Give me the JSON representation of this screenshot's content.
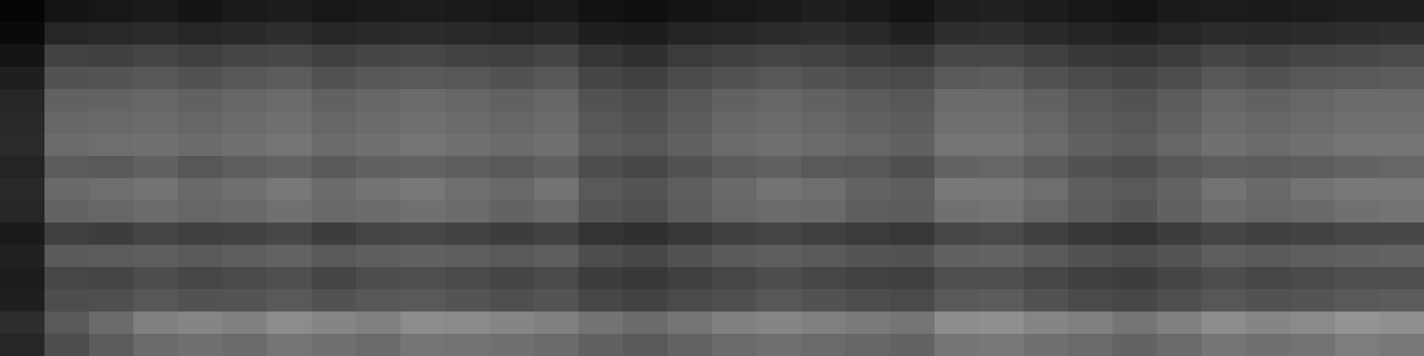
{
  "chart_data": {
    "type": "heatmap",
    "tick_labels": false,
    "zlim": [
      0,
      1
    ],
    "values": [
      [
        0.02,
        0.08,
        0.09,
        0.1,
        0.08,
        0.1,
        0.11,
        0.09,
        0.1,
        0.11,
        0.1,
        0.09,
        0.1,
        0.07,
        0.06,
        0.08,
        0.09,
        0.1,
        0.12,
        0.1,
        0.08,
        0.12,
        0.13,
        0.11,
        0.09,
        0.08,
        0.1,
        0.11,
        0.1,
        0.11,
        0.12,
        0.12
      ],
      [
        0.04,
        0.15,
        0.16,
        0.17,
        0.15,
        0.16,
        0.18,
        0.15,
        0.16,
        0.17,
        0.16,
        0.15,
        0.16,
        0.12,
        0.11,
        0.14,
        0.15,
        0.17,
        0.18,
        0.16,
        0.13,
        0.18,
        0.19,
        0.16,
        0.14,
        0.13,
        0.15,
        0.17,
        0.16,
        0.17,
        0.18,
        0.19
      ],
      [
        0.08,
        0.26,
        0.25,
        0.27,
        0.25,
        0.27,
        0.28,
        0.25,
        0.27,
        0.28,
        0.26,
        0.25,
        0.27,
        0.21,
        0.19,
        0.23,
        0.25,
        0.27,
        0.26,
        0.24,
        0.22,
        0.28,
        0.28,
        0.25,
        0.22,
        0.21,
        0.24,
        0.27,
        0.25,
        0.27,
        0.28,
        0.29
      ],
      [
        0.12,
        0.32,
        0.33,
        0.34,
        0.32,
        0.34,
        0.36,
        0.32,
        0.34,
        0.35,
        0.34,
        0.32,
        0.34,
        0.27,
        0.25,
        0.29,
        0.32,
        0.34,
        0.32,
        0.3,
        0.29,
        0.35,
        0.36,
        0.32,
        0.29,
        0.27,
        0.3,
        0.34,
        0.32,
        0.34,
        0.35,
        0.36
      ],
      [
        0.15,
        0.38,
        0.39,
        0.4,
        0.38,
        0.4,
        0.42,
        0.38,
        0.4,
        0.42,
        0.4,
        0.38,
        0.4,
        0.32,
        0.3,
        0.34,
        0.38,
        0.4,
        0.38,
        0.36,
        0.34,
        0.42,
        0.42,
        0.38,
        0.34,
        0.32,
        0.36,
        0.4,
        0.38,
        0.4,
        0.42,
        0.42
      ],
      [
        0.16,
        0.4,
        0.41,
        0.42,
        0.4,
        0.42,
        0.44,
        0.4,
        0.42,
        0.44,
        0.42,
        0.4,
        0.42,
        0.34,
        0.32,
        0.36,
        0.4,
        0.42,
        0.4,
        0.38,
        0.36,
        0.44,
        0.44,
        0.4,
        0.36,
        0.34,
        0.38,
        0.42,
        0.4,
        0.42,
        0.44,
        0.44
      ],
      [
        0.17,
        0.42,
        0.43,
        0.44,
        0.42,
        0.44,
        0.46,
        0.42,
        0.44,
        0.46,
        0.44,
        0.42,
        0.44,
        0.36,
        0.34,
        0.38,
        0.42,
        0.44,
        0.42,
        0.4,
        0.38,
        0.46,
        0.46,
        0.42,
        0.38,
        0.36,
        0.4,
        0.44,
        0.42,
        0.44,
        0.46,
        0.46
      ],
      [
        0.14,
        0.36,
        0.35,
        0.38,
        0.34,
        0.37,
        0.39,
        0.35,
        0.38,
        0.39,
        0.37,
        0.35,
        0.38,
        0.3,
        0.28,
        0.32,
        0.36,
        0.38,
        0.35,
        0.34,
        0.31,
        0.39,
        0.4,
        0.36,
        0.32,
        0.3,
        0.34,
        0.37,
        0.36,
        0.37,
        0.39,
        0.4
      ],
      [
        0.16,
        0.41,
        0.43,
        0.45,
        0.41,
        0.44,
        0.47,
        0.42,
        0.45,
        0.47,
        0.43,
        0.41,
        0.45,
        0.35,
        0.33,
        0.37,
        0.41,
        0.45,
        0.43,
        0.39,
        0.37,
        0.47,
        0.47,
        0.43,
        0.37,
        0.35,
        0.39,
        0.45,
        0.41,
        0.45,
        0.47,
        0.47
      ],
      [
        0.15,
        0.39,
        0.4,
        0.42,
        0.4,
        0.41,
        0.44,
        0.41,
        0.42,
        0.44,
        0.42,
        0.39,
        0.41,
        0.33,
        0.31,
        0.36,
        0.4,
        0.42,
        0.41,
        0.37,
        0.36,
        0.44,
        0.45,
        0.4,
        0.36,
        0.33,
        0.38,
        0.42,
        0.4,
        0.41,
        0.44,
        0.45
      ],
      [
        0.1,
        0.25,
        0.24,
        0.27,
        0.25,
        0.26,
        0.28,
        0.24,
        0.27,
        0.28,
        0.26,
        0.24,
        0.26,
        0.2,
        0.19,
        0.22,
        0.25,
        0.27,
        0.25,
        0.23,
        0.22,
        0.28,
        0.29,
        0.25,
        0.22,
        0.2,
        0.24,
        0.27,
        0.25,
        0.26,
        0.28,
        0.28
      ],
      [
        0.13,
        0.35,
        0.36,
        0.37,
        0.35,
        0.37,
        0.39,
        0.35,
        0.37,
        0.38,
        0.37,
        0.35,
        0.37,
        0.3,
        0.28,
        0.32,
        0.35,
        0.37,
        0.35,
        0.33,
        0.32,
        0.38,
        0.39,
        0.35,
        0.32,
        0.3,
        0.33,
        0.37,
        0.35,
        0.37,
        0.38,
        0.39
      ],
      [
        0.11,
        0.28,
        0.27,
        0.3,
        0.28,
        0.29,
        0.31,
        0.27,
        0.3,
        0.31,
        0.29,
        0.27,
        0.29,
        0.24,
        0.22,
        0.25,
        0.28,
        0.3,
        0.28,
        0.26,
        0.25,
        0.31,
        0.31,
        0.28,
        0.25,
        0.24,
        0.27,
        0.3,
        0.28,
        0.29,
        0.31,
        0.31
      ],
      [
        0.12,
        0.3,
        0.31,
        0.34,
        0.32,
        0.33,
        0.35,
        0.32,
        0.34,
        0.35,
        0.33,
        0.31,
        0.33,
        0.28,
        0.26,
        0.29,
        0.31,
        0.34,
        0.32,
        0.3,
        0.29,
        0.35,
        0.36,
        0.32,
        0.29,
        0.28,
        0.31,
        0.34,
        0.32,
        0.33,
        0.35,
        0.36
      ],
      [
        0.18,
        0.35,
        0.42,
        0.5,
        0.52,
        0.5,
        0.55,
        0.52,
        0.5,
        0.55,
        0.54,
        0.52,
        0.5,
        0.45,
        0.42,
        0.46,
        0.5,
        0.52,
        0.5,
        0.48,
        0.46,
        0.55,
        0.56,
        0.52,
        0.5,
        0.46,
        0.5,
        0.55,
        0.52,
        0.54,
        0.58,
        0.56
      ],
      [
        0.15,
        0.3,
        0.36,
        0.42,
        0.44,
        0.42,
        0.46,
        0.44,
        0.42,
        0.46,
        0.45,
        0.44,
        0.42,
        0.38,
        0.35,
        0.39,
        0.42,
        0.44,
        0.42,
        0.4,
        0.39,
        0.46,
        0.47,
        0.44,
        0.42,
        0.39,
        0.42,
        0.46,
        0.44,
        0.45,
        0.49,
        0.47
      ]
    ]
  }
}
